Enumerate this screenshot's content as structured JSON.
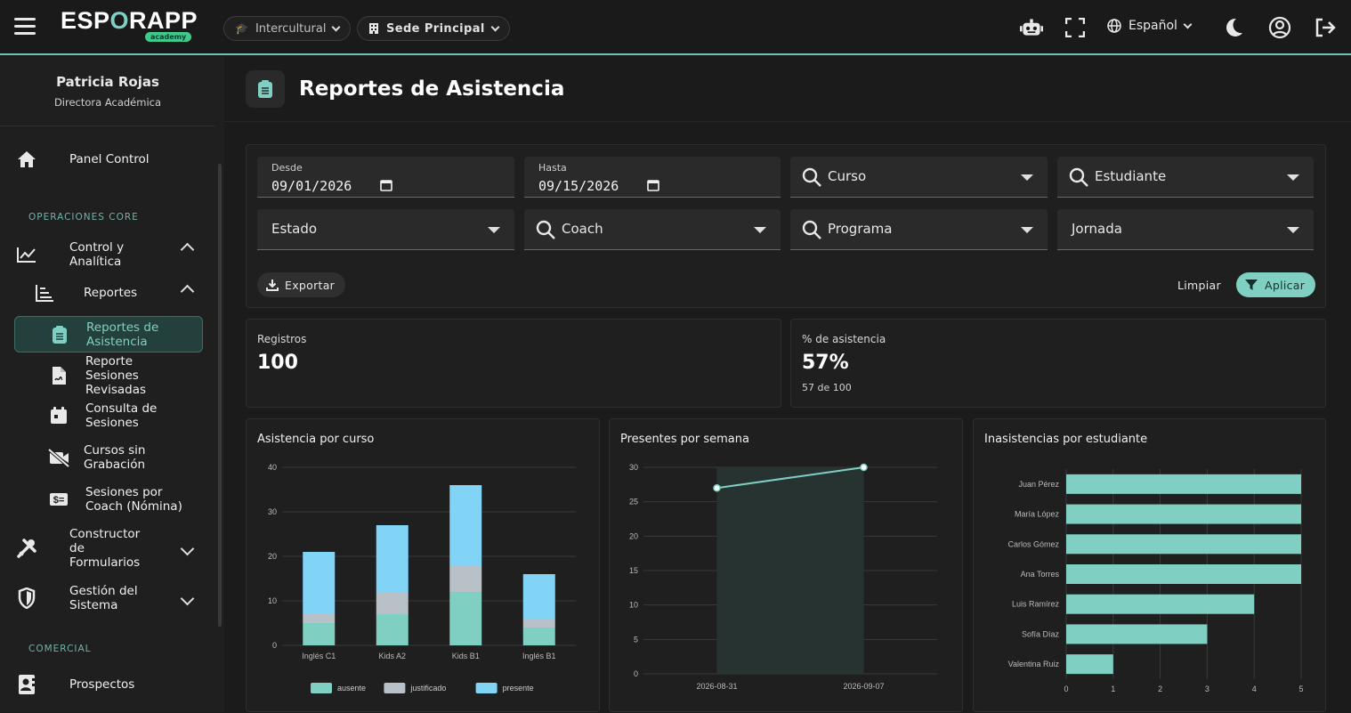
{
  "topbar": {
    "logo_main": "ESP",
    "logo_o": "O",
    "logo_end": "RAPP",
    "logo_sub": "academy",
    "program_selector": "Intercultural",
    "campus_selector": "Sede Principal",
    "language": "Español",
    "icons": [
      "menu-icon",
      "robot-icon",
      "fullscreen-icon",
      "globe-icon",
      "moon-icon",
      "user-circle-icon",
      "logout-icon"
    ]
  },
  "sidebar": {
    "user_name": "Patricia Rojas",
    "user_role": "Directora Académica",
    "panel": "Panel Control",
    "section_core": "OPERACIONES CORE",
    "control": "Control y Analítica",
    "reportes": "Reportes",
    "sub_items": [
      {
        "label": "Reportes de Asistencia",
        "icon": "clipboard-icon",
        "active": true
      },
      {
        "label": "Reporte Sesiones Revisadas",
        "icon": "file-signature-icon"
      },
      {
        "label": "Consulta de Sesiones",
        "icon": "calendar-icon"
      },
      {
        "label": "Cursos sin Grabación",
        "icon": "video-off-icon"
      },
      {
        "label": "Sesiones por Coach (Nómina)",
        "icon": "money-icon"
      }
    ],
    "constructor": "Constructor de Formularios",
    "gestion": "Gestión del Sistema",
    "section_comercial": "COMERCIAL",
    "prospectos": "Prospectos"
  },
  "page": {
    "title": "Reportes de Asistencia"
  },
  "filters": {
    "desde_label": "Desde",
    "desde_value": "09/01/2026",
    "hasta_label": "Hasta",
    "hasta_value": "09/15/2026",
    "curso": "Curso",
    "estudiante": "Estudiante",
    "estado": "Estado",
    "coach": "Coach",
    "programa": "Programa",
    "jornada": "Jornada",
    "export": "Exportar",
    "clear": "Limpiar",
    "apply": "Aplicar"
  },
  "kpis": {
    "registros_label": "Registros",
    "registros_value": "100",
    "asistencia_label": "% de asistencia",
    "asistencia_value": "57%",
    "asistencia_sub": "57 de 100"
  },
  "colors": {
    "accent": "#7fd0c2",
    "ausente": "#7fd0c2",
    "justificado": "#b8c0c8",
    "presente": "#82d4f7"
  },
  "chart_data": [
    {
      "type": "bar",
      "title": "Asistencia por curso",
      "stacked": true,
      "categories": [
        "Inglés C1",
        "Kids A2",
        "Kids B1",
        "Inglés B1"
      ],
      "series": [
        {
          "name": "ausente",
          "values": [
            5,
            7,
            12,
            4
          ]
        },
        {
          "name": "justificado",
          "values": [
            2,
            5,
            6,
            2
          ]
        },
        {
          "name": "presente",
          "values": [
            14,
            15,
            18,
            10
          ]
        }
      ],
      "ylim": [
        0,
        40
      ],
      "yticks": [
        0,
        10,
        20,
        30,
        40
      ],
      "legend": "bottom"
    },
    {
      "type": "line",
      "title": "Presentes por semana",
      "x": [
        "2026-08-31",
        "2026-09-07"
      ],
      "values": [
        27,
        30
      ],
      "ylim": [
        0,
        30
      ],
      "yticks": [
        0,
        5,
        10,
        15,
        20,
        25,
        30
      ]
    },
    {
      "type": "bar",
      "orientation": "horizontal",
      "title": "Inasistencias por estudiante",
      "categories": [
        "Juan Pérez",
        "María López",
        "Carlos Gómez",
        "Ana Torres",
        "Luis Ramírez",
        "Sofía Díaz",
        "Valentina Ruiz"
      ],
      "values": [
        5,
        5,
        5,
        5,
        4,
        3,
        1
      ],
      "xlim": [
        0,
        5
      ],
      "xticks": [
        0,
        1,
        2,
        3,
        4,
        5
      ]
    }
  ]
}
